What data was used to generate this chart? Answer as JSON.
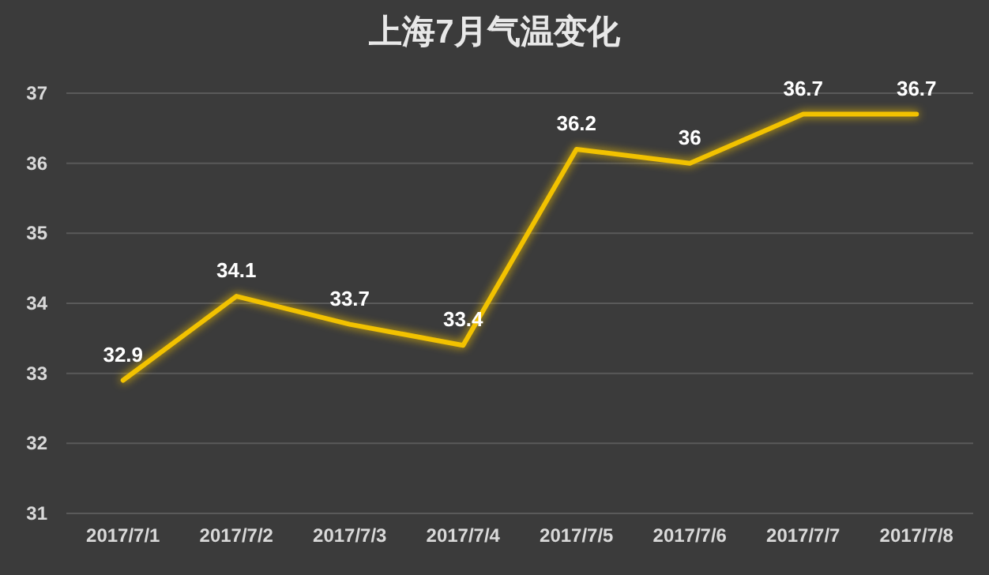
{
  "chart_data": {
    "type": "line",
    "title": "上海7月气温变化",
    "categories": [
      "2017/7/1",
      "2017/7/2",
      "2017/7/3",
      "2017/7/4",
      "2017/7/5",
      "2017/7/6",
      "2017/7/7",
      "2017/7/8"
    ],
    "series": [
      {
        "color": "#f2c200",
        "values": [
          32.9,
          34.1,
          33.7,
          33.4,
          36.2,
          36,
          36.7,
          36.7
        ]
      }
    ],
    "ylim": [
      31,
      37
    ],
    "yticks": [
      31,
      32,
      33,
      34,
      35,
      36,
      37
    ],
    "grid": "y",
    "data_labels": true,
    "marker": "none",
    "line_style": "solid"
  }
}
